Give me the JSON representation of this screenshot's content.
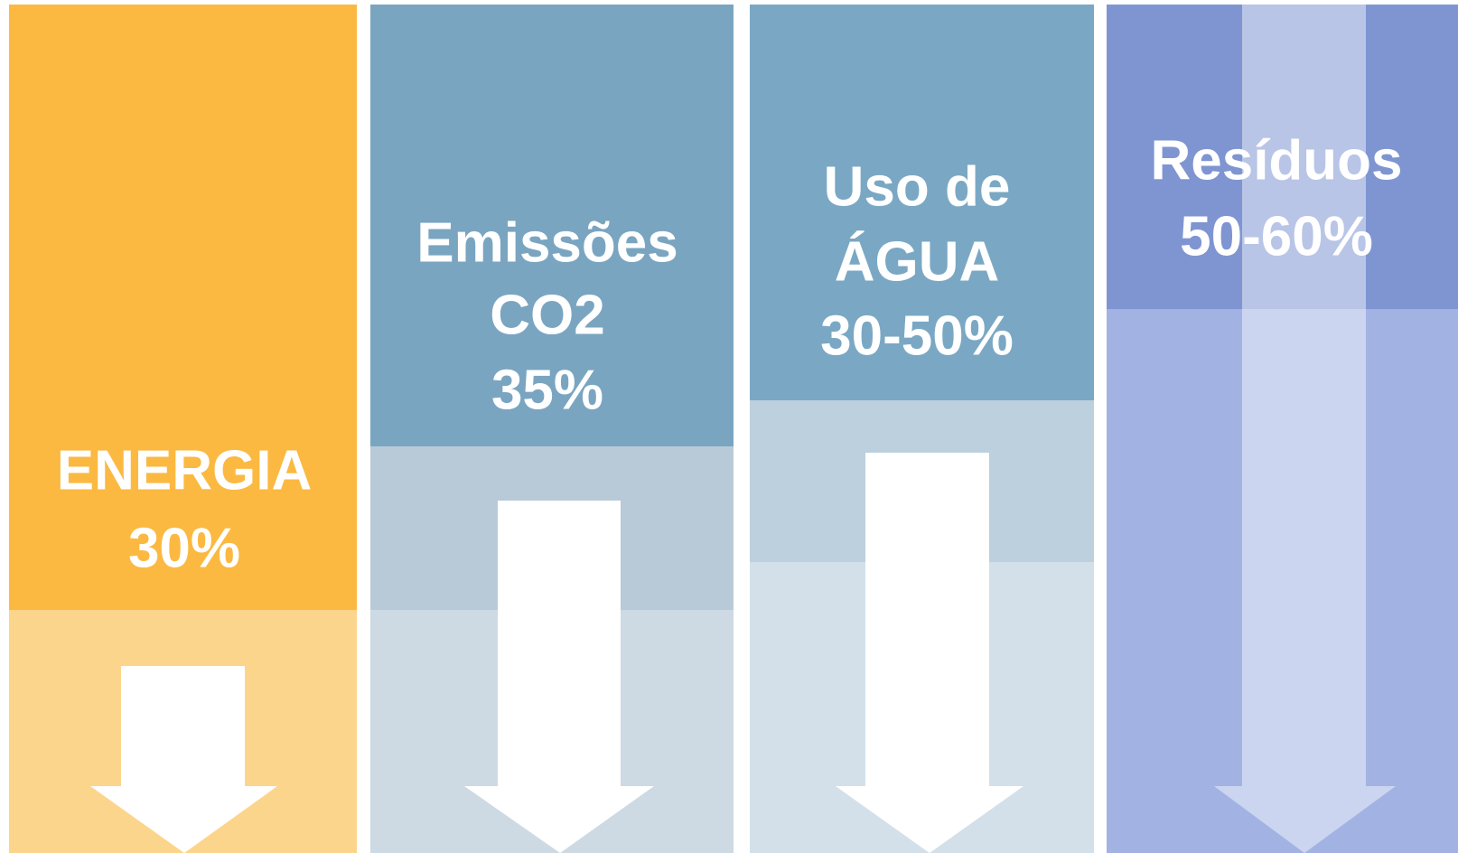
{
  "panels": [
    {
      "lines": [
        "ENERGIA",
        "30%"
      ]
    },
    {
      "lines": [
        "Emissões",
        "CO2",
        "35%"
      ]
    },
    {
      "lines": [
        "Uso de",
        "ÁGUA",
        "30-50%"
      ]
    },
    {
      "lines": [
        "Resíduos",
        "50-60%"
      ]
    }
  ]
}
